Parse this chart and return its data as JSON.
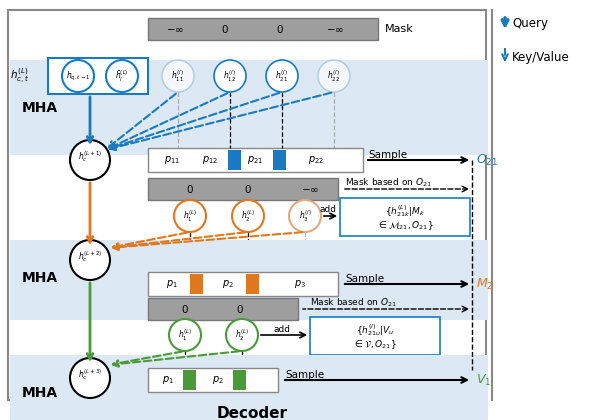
{
  "fig_width": 6.12,
  "fig_height": 4.2,
  "dpi": 100,
  "blue": "#1a7abf",
  "orange": "#e07820",
  "green": "#4a9a3a",
  "light_blue_bg": "#dce9f5",
  "mask_gray_bg": "#9e9e9e",
  "prob_box_gray": "#b8b8b8",
  "title": "Decoder",
  "legend_query": "Query",
  "legend_kv": "Key/Value",
  "ann_box_color": "#1a7abf"
}
